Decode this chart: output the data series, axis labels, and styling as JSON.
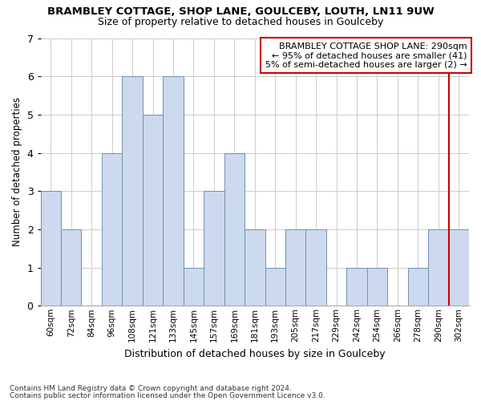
{
  "title": "BRAMBLEY COTTAGE, SHOP LANE, GOULCEBY, LOUTH, LN11 9UW",
  "subtitle": "Size of property relative to detached houses in Goulceby",
  "xlabel": "Distribution of detached houses by size in Goulceby",
  "ylabel": "Number of detached properties",
  "categories": [
    "60sqm",
    "72sqm",
    "84sqm",
    "96sqm",
    "108sqm",
    "121sqm",
    "133sqm",
    "145sqm",
    "157sqm",
    "169sqm",
    "181sqm",
    "193sqm",
    "205sqm",
    "217sqm",
    "229sqm",
    "242sqm",
    "254sqm",
    "266sqm",
    "278sqm",
    "290sqm",
    "302sqm"
  ],
  "values": [
    3,
    2,
    0,
    4,
    6,
    5,
    6,
    1,
    3,
    4,
    2,
    1,
    2,
    2,
    0,
    1,
    1,
    0,
    1,
    2,
    2
  ],
  "bar_color": "#ccd9ee",
  "bar_edge_color": "#7090b0",
  "highlight_index": 19,
  "highlight_line_color": "#cc0000",
  "annotation_text": "BRAMBLEY COTTAGE SHOP LANE: 290sqm\n← 95% of detached houses are smaller (41)\n5% of semi-detached houses are larger (2) →",
  "annotation_box_color": "#ffffff",
  "annotation_box_edge_color": "#cc0000",
  "ylim": [
    0,
    7
  ],
  "yticks": [
    0,
    1,
    2,
    3,
    4,
    5,
    6,
    7
  ],
  "footnote1": "Contains HM Land Registry data © Crown copyright and database right 2024.",
  "footnote2": "Contains public sector information licensed under the Open Government Licence v3.0.",
  "background_color": "#ffffff",
  "grid_color": "#cccccc"
}
